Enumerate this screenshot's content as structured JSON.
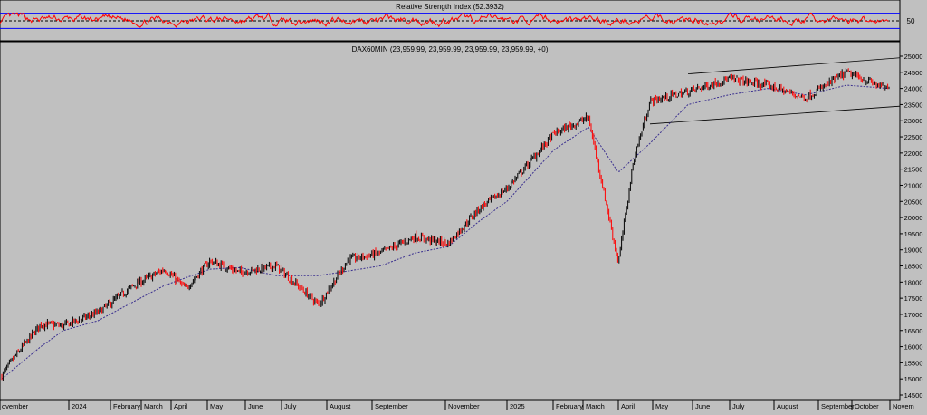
{
  "rsi_panel": {
    "title": "Relative Strength Index (52.3932)",
    "ylabel_ticks": [
      "50"
    ],
    "levels": [
      30,
      50,
      70
    ],
    "line_color": "#ff0000",
    "level_color": "#0000ff"
  },
  "main_panel": {
    "title": "DAX60MIN (23,959.99, 23,959.99, 23,959.99, 23,959.99, +0)"
  },
  "x_axis": {
    "month_labels": [
      "ovember",
      "2024",
      "February",
      "March",
      "April",
      "May",
      "June",
      "July",
      "August",
      "September",
      "November",
      "2025",
      "February",
      "March",
      "April",
      "May",
      "June",
      "July",
      "August",
      "September",
      "October",
      "Novem"
    ]
  },
  "colors": {
    "background": "#c0c0c0",
    "candle_up": "#000000",
    "candle_down": "#ff0000",
    "moving_average": "#3a2f8f",
    "channel": "#000000",
    "axis_text": "#000000"
  },
  "chart_data": {
    "type": "candlestick",
    "title": "DAX60MIN (23,959.99, 23,959.99, 23,959.99, 23,959.99, +0)",
    "ylim": [
      14500,
      25000
    ],
    "y_ticks": [
      14500,
      15000,
      15500,
      16000,
      16500,
      17000,
      17500,
      18000,
      18500,
      19000,
      19500,
      20000,
      20500,
      21000,
      21500,
      22000,
      22500,
      23000,
      23500,
      24000,
      24500,
      25000
    ],
    "x_range": [
      "2023-11",
      "2025-11"
    ],
    "price_path": [
      {
        "month": "2023-11",
        "value": 15100
      },
      {
        "month": "2023-11-mid",
        "value": 15600
      },
      {
        "month": "2023-12",
        "value": 16700
      },
      {
        "month": "2024-01",
        "value": 16650
      },
      {
        "month": "2024-02",
        "value": 17050
      },
      {
        "month": "2024-03",
        "value": 17900
      },
      {
        "month": "2024-04",
        "value": 18400
      },
      {
        "month": "2024-04-end",
        "value": 17800
      },
      {
        "month": "2024-05",
        "value": 18650
      },
      {
        "month": "2024-06",
        "value": 18300
      },
      {
        "month": "2024-07",
        "value": 18500
      },
      {
        "month": "2024-08",
        "value": 17300
      },
      {
        "month": "2024-08-end",
        "value": 18700
      },
      {
        "month": "2024-09",
        "value": 18900
      },
      {
        "month": "2024-10",
        "value": 19400
      },
      {
        "month": "2024-11",
        "value": 19200
      },
      {
        "month": "2024-12",
        "value": 20300
      },
      {
        "month": "2025-01",
        "value": 20900
      },
      {
        "month": "2025-02",
        "value": 22600
      },
      {
        "month": "2025-03",
        "value": 23100
      },
      {
        "month": "2025-04",
        "value": 18600
      },
      {
        "month": "2025-04-end",
        "value": 21800
      },
      {
        "month": "2025-05",
        "value": 23600
      },
      {
        "month": "2025-06",
        "value": 23900
      },
      {
        "month": "2025-07",
        "value": 24300
      },
      {
        "month": "2025-08",
        "value": 24100
      },
      {
        "month": "2025-09",
        "value": 23700
      },
      {
        "month": "2025-10",
        "value": 24500
      },
      {
        "month": "2025-11",
        "value": 23960
      }
    ],
    "moving_average_path": [
      {
        "month": "2023-11",
        "value": 15000
      },
      {
        "month": "2023-12",
        "value": 16000
      },
      {
        "month": "2024-01",
        "value": 16500
      },
      {
        "month": "2024-02",
        "value": 16800
      },
      {
        "month": "2024-03",
        "value": 17400
      },
      {
        "month": "2024-04",
        "value": 17900
      },
      {
        "month": "2024-05",
        "value": 18400
      },
      {
        "month": "2024-06",
        "value": 18450
      },
      {
        "month": "2024-07",
        "value": 18200
      },
      {
        "month": "2024-08",
        "value": 18200
      },
      {
        "month": "2024-09",
        "value": 18500
      },
      {
        "month": "2024-10",
        "value": 18900
      },
      {
        "month": "2024-11",
        "value": 19100
      },
      {
        "month": "2024-12",
        "value": 19900
      },
      {
        "month": "2025-01",
        "value": 20500
      },
      {
        "month": "2025-02",
        "value": 22100
      },
      {
        "month": "2025-03",
        "value": 22800
      },
      {
        "month": "2025-04",
        "value": 21400
      },
      {
        "month": "2025-05",
        "value": 22300
      },
      {
        "month": "2025-06",
        "value": 23500
      },
      {
        "month": "2025-07",
        "value": 23800
      },
      {
        "month": "2025-08",
        "value": 24000
      },
      {
        "month": "2025-09",
        "value": 23800
      },
      {
        "month": "2025-10",
        "value": 24100
      },
      {
        "month": "2025-11",
        "value": 24000
      }
    ],
    "channel": {
      "upper": [
        {
          "month": "2025-06",
          "value": 24450
        },
        {
          "month": "2025-11",
          "value": 24950
        }
      ],
      "lower": [
        {
          "month": "2025-05",
          "value": 22900
        },
        {
          "month": "2025-11",
          "value": 23450
        }
      ]
    },
    "rsi": {
      "current": 52.3932,
      "ylim": [
        0,
        100
      ]
    }
  }
}
